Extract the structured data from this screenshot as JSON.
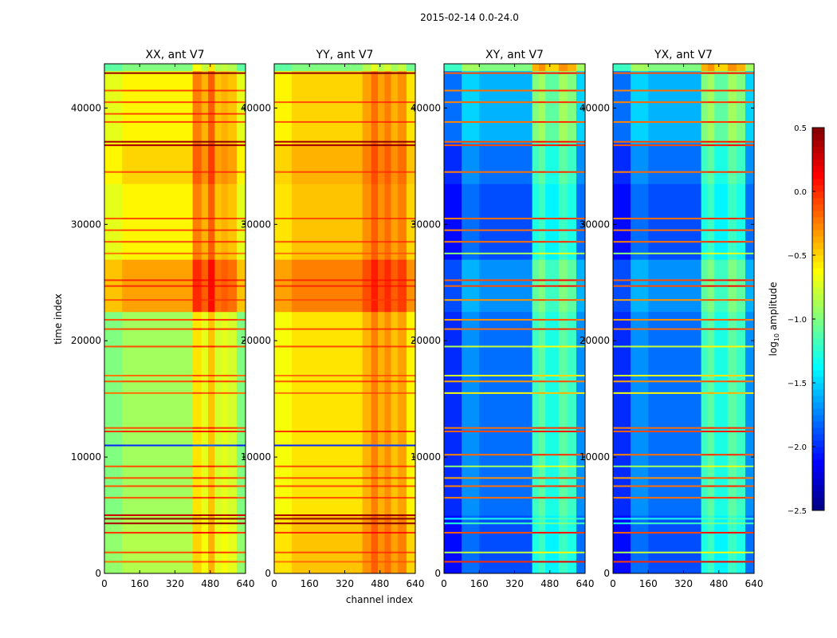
{
  "chart_data": {
    "type": "heatmap",
    "title": "2015-02-14 0.0-24.0",
    "xlabel": "channel index",
    "ylabel": "time index",
    "xlim": [
      0,
      640
    ],
    "ylim": [
      0,
      43800
    ],
    "xticks": [
      0,
      160,
      320,
      480,
      640
    ],
    "yticks": [
      0,
      10000,
      20000,
      30000,
      40000
    ],
    "colorbar": {
      "label": "log10 amplitude",
      "range": [
        -2.5,
        0.5
      ],
      "ticks": [
        "0.5",
        "0.0",
        "−0.5",
        "−1.0",
        "−1.5",
        "−2.0",
        "−2.5"
      ],
      "colormap": "jet"
    },
    "panels": [
      {
        "title": "XX, ant V7",
        "zones": [
          [
            0,
            5000,
            -0.85
          ],
          [
            5000,
            22500,
            -0.9
          ],
          [
            22500,
            27000,
            -0.35
          ],
          [
            27000,
            33500,
            -0.6
          ],
          [
            33500,
            37000,
            -0.5
          ],
          [
            37000,
            43200,
            -0.6
          ],
          [
            43200,
            43800,
            -1.0
          ]
        ],
        "bands": [
          [
            0,
            80,
            -0.1
          ],
          [
            80,
            400,
            0
          ],
          [
            400,
            440,
            0.35
          ],
          [
            440,
            470,
            0.2
          ],
          [
            470,
            500,
            0.45
          ],
          [
            500,
            530,
            0.15
          ],
          [
            530,
            560,
            0.2
          ],
          [
            560,
            600,
            0.15
          ],
          [
            600,
            640,
            -0.1
          ]
        ],
        "streaks": [
          [
            1000,
            -0.2
          ],
          [
            1800,
            -0.1
          ],
          [
            3500,
            0.0
          ],
          [
            4300,
            0.4
          ],
          [
            4700,
            0.45
          ],
          [
            5000,
            0.3
          ],
          [
            6500,
            -0.1
          ],
          [
            7500,
            -0.1
          ],
          [
            8200,
            -0.1
          ],
          [
            9200,
            -0.1
          ],
          [
            11000,
            -2.0
          ],
          [
            12200,
            0.0
          ],
          [
            12500,
            -0.1
          ],
          [
            15500,
            -0.2
          ],
          [
            16500,
            -0.1
          ],
          [
            17000,
            -0.2
          ],
          [
            19500,
            -0.1
          ],
          [
            21000,
            -0.1
          ],
          [
            21800,
            -0.1
          ],
          [
            23500,
            -0.1
          ],
          [
            24700,
            0.0
          ],
          [
            25200,
            0.0
          ],
          [
            27500,
            -0.2
          ],
          [
            28500,
            -0.1
          ],
          [
            29500,
            -0.1
          ],
          [
            30500,
            -0.1
          ],
          [
            34500,
            -0.1
          ],
          [
            36800,
            0.4
          ],
          [
            37100,
            0.4
          ],
          [
            38800,
            -0.1
          ],
          [
            39500,
            -0.1
          ],
          [
            40500,
            -0.1
          ],
          [
            41500,
            -0.1
          ],
          [
            43000,
            0.45
          ]
        ]
      },
      {
        "title": "YY, ant V7",
        "zones": [
          [
            0,
            5000,
            -0.45
          ],
          [
            5000,
            22500,
            -0.55
          ],
          [
            22500,
            27000,
            -0.25
          ],
          [
            27000,
            33500,
            -0.45
          ],
          [
            33500,
            37000,
            -0.4
          ],
          [
            37000,
            43200,
            -0.5
          ],
          [
            43200,
            43800,
            -1.0
          ]
        ],
        "bands": [
          [
            0,
            80,
            -0.1
          ],
          [
            80,
            400,
            0
          ],
          [
            400,
            440,
            0.15
          ],
          [
            440,
            470,
            0.3
          ],
          [
            470,
            500,
            0.15
          ],
          [
            500,
            530,
            0.25
          ],
          [
            530,
            560,
            0.1
          ],
          [
            560,
            600,
            0.2
          ],
          [
            600,
            640,
            -0.05
          ]
        ],
        "streaks": [
          [
            1000,
            -0.2
          ],
          [
            1800,
            -0.1
          ],
          [
            3500,
            0.0
          ],
          [
            4300,
            0.45
          ],
          [
            4700,
            0.45
          ],
          [
            5000,
            0.4
          ],
          [
            6500,
            -0.1
          ],
          [
            7500,
            -0.1
          ],
          [
            8200,
            -0.1
          ],
          [
            9200,
            -0.1
          ],
          [
            11000,
            -2.0
          ],
          [
            12200,
            0.0
          ],
          [
            15500,
            -0.2
          ],
          [
            16500,
            -0.1
          ],
          [
            17000,
            -0.2
          ],
          [
            19500,
            -0.1
          ],
          [
            21000,
            -0.1
          ],
          [
            23500,
            -0.1
          ],
          [
            24700,
            0.0
          ],
          [
            25200,
            0.0
          ],
          [
            27500,
            -0.2
          ],
          [
            28500,
            -0.1
          ],
          [
            30500,
            -0.1
          ],
          [
            34500,
            -0.1
          ],
          [
            36800,
            0.4
          ],
          [
            37100,
            0.4
          ],
          [
            38800,
            -0.1
          ],
          [
            40500,
            -0.1
          ],
          [
            43000,
            0.45
          ]
        ]
      },
      {
        "title": "XY, ant V7",
        "zones": [
          [
            0,
            5000,
            -1.9
          ],
          [
            5000,
            22500,
            -1.8
          ],
          [
            22500,
            27000,
            -1.7
          ],
          [
            27000,
            33500,
            -1.9
          ],
          [
            33500,
            37000,
            -1.8
          ],
          [
            37000,
            43200,
            -1.6
          ],
          [
            43200,
            43800,
            -1.0
          ]
        ],
        "bands": [
          [
            0,
            80,
            -0.2
          ],
          [
            80,
            160,
            0.1
          ],
          [
            160,
            400,
            0
          ],
          [
            400,
            430,
            0.6
          ],
          [
            430,
            460,
            0.7
          ],
          [
            460,
            520,
            0.5
          ],
          [
            520,
            560,
            0.7
          ],
          [
            560,
            600,
            0.6
          ],
          [
            600,
            640,
            0.1
          ]
        ],
        "streaks": [
          [
            1000,
            0.0
          ],
          [
            1800,
            -0.8
          ],
          [
            3500,
            -0.1
          ],
          [
            4300,
            -1.2
          ],
          [
            4700,
            -1.3
          ],
          [
            6500,
            -0.2
          ],
          [
            7500,
            -0.2
          ],
          [
            8200,
            -0.3
          ],
          [
            9200,
            -0.9
          ],
          [
            10200,
            -0.2
          ],
          [
            12200,
            -0.1
          ],
          [
            12500,
            -0.2
          ],
          [
            15500,
            -0.6
          ],
          [
            16500,
            -0.3
          ],
          [
            17000,
            -0.7
          ],
          [
            19500,
            -0.8
          ],
          [
            21000,
            -0.2
          ],
          [
            21800,
            -0.3
          ],
          [
            23500,
            -0.3
          ],
          [
            24700,
            -0.1
          ],
          [
            25200,
            -0.1
          ],
          [
            27500,
            -0.9
          ],
          [
            28500,
            -0.2
          ],
          [
            29500,
            -0.2
          ],
          [
            30500,
            -0.2
          ],
          [
            34500,
            -0.2
          ],
          [
            36800,
            -0.1
          ],
          [
            37100,
            -0.1
          ],
          [
            38800,
            -0.2
          ],
          [
            40500,
            -0.2
          ],
          [
            41500,
            -0.2
          ],
          [
            43000,
            -0.1
          ]
        ]
      },
      {
        "title": "YX, ant V7",
        "zones": [
          [
            0,
            5000,
            -1.9
          ],
          [
            5000,
            22500,
            -1.8
          ],
          [
            22500,
            27000,
            -1.7
          ],
          [
            27000,
            33500,
            -1.9
          ],
          [
            33500,
            37000,
            -1.8
          ],
          [
            37000,
            43200,
            -1.6
          ],
          [
            43200,
            43800,
            -1.0
          ]
        ],
        "bands": [
          [
            0,
            80,
            -0.2
          ],
          [
            80,
            160,
            0.1
          ],
          [
            160,
            400,
            0
          ],
          [
            400,
            430,
            0.6
          ],
          [
            430,
            460,
            0.7
          ],
          [
            460,
            520,
            0.5
          ],
          [
            520,
            560,
            0.7
          ],
          [
            560,
            600,
            0.6
          ],
          [
            600,
            640,
            0.1
          ]
        ],
        "streaks": [
          [
            1000,
            0.0
          ],
          [
            1800,
            -0.8
          ],
          [
            3500,
            -0.1
          ],
          [
            4300,
            -1.2
          ],
          [
            4700,
            -1.3
          ],
          [
            6500,
            -0.2
          ],
          [
            7500,
            -0.2
          ],
          [
            8200,
            -0.3
          ],
          [
            9200,
            -0.9
          ],
          [
            10200,
            -0.2
          ],
          [
            12200,
            -0.1
          ],
          [
            12500,
            -0.2
          ],
          [
            15500,
            -0.6
          ],
          [
            16500,
            -0.3
          ],
          [
            17000,
            -0.7
          ],
          [
            19500,
            -0.8
          ],
          [
            21000,
            -0.2
          ],
          [
            21800,
            -0.3
          ],
          [
            23500,
            -0.3
          ],
          [
            24700,
            -0.1
          ],
          [
            25200,
            -0.1
          ],
          [
            27500,
            -0.9
          ],
          [
            28500,
            -0.2
          ],
          [
            29500,
            -0.2
          ],
          [
            30500,
            -0.2
          ],
          [
            34500,
            -0.2
          ],
          [
            36800,
            -0.1
          ],
          [
            37100,
            -0.1
          ],
          [
            38800,
            -0.2
          ],
          [
            40500,
            -0.2
          ],
          [
            41500,
            -0.2
          ],
          [
            43000,
            -0.1
          ]
        ]
      }
    ]
  }
}
